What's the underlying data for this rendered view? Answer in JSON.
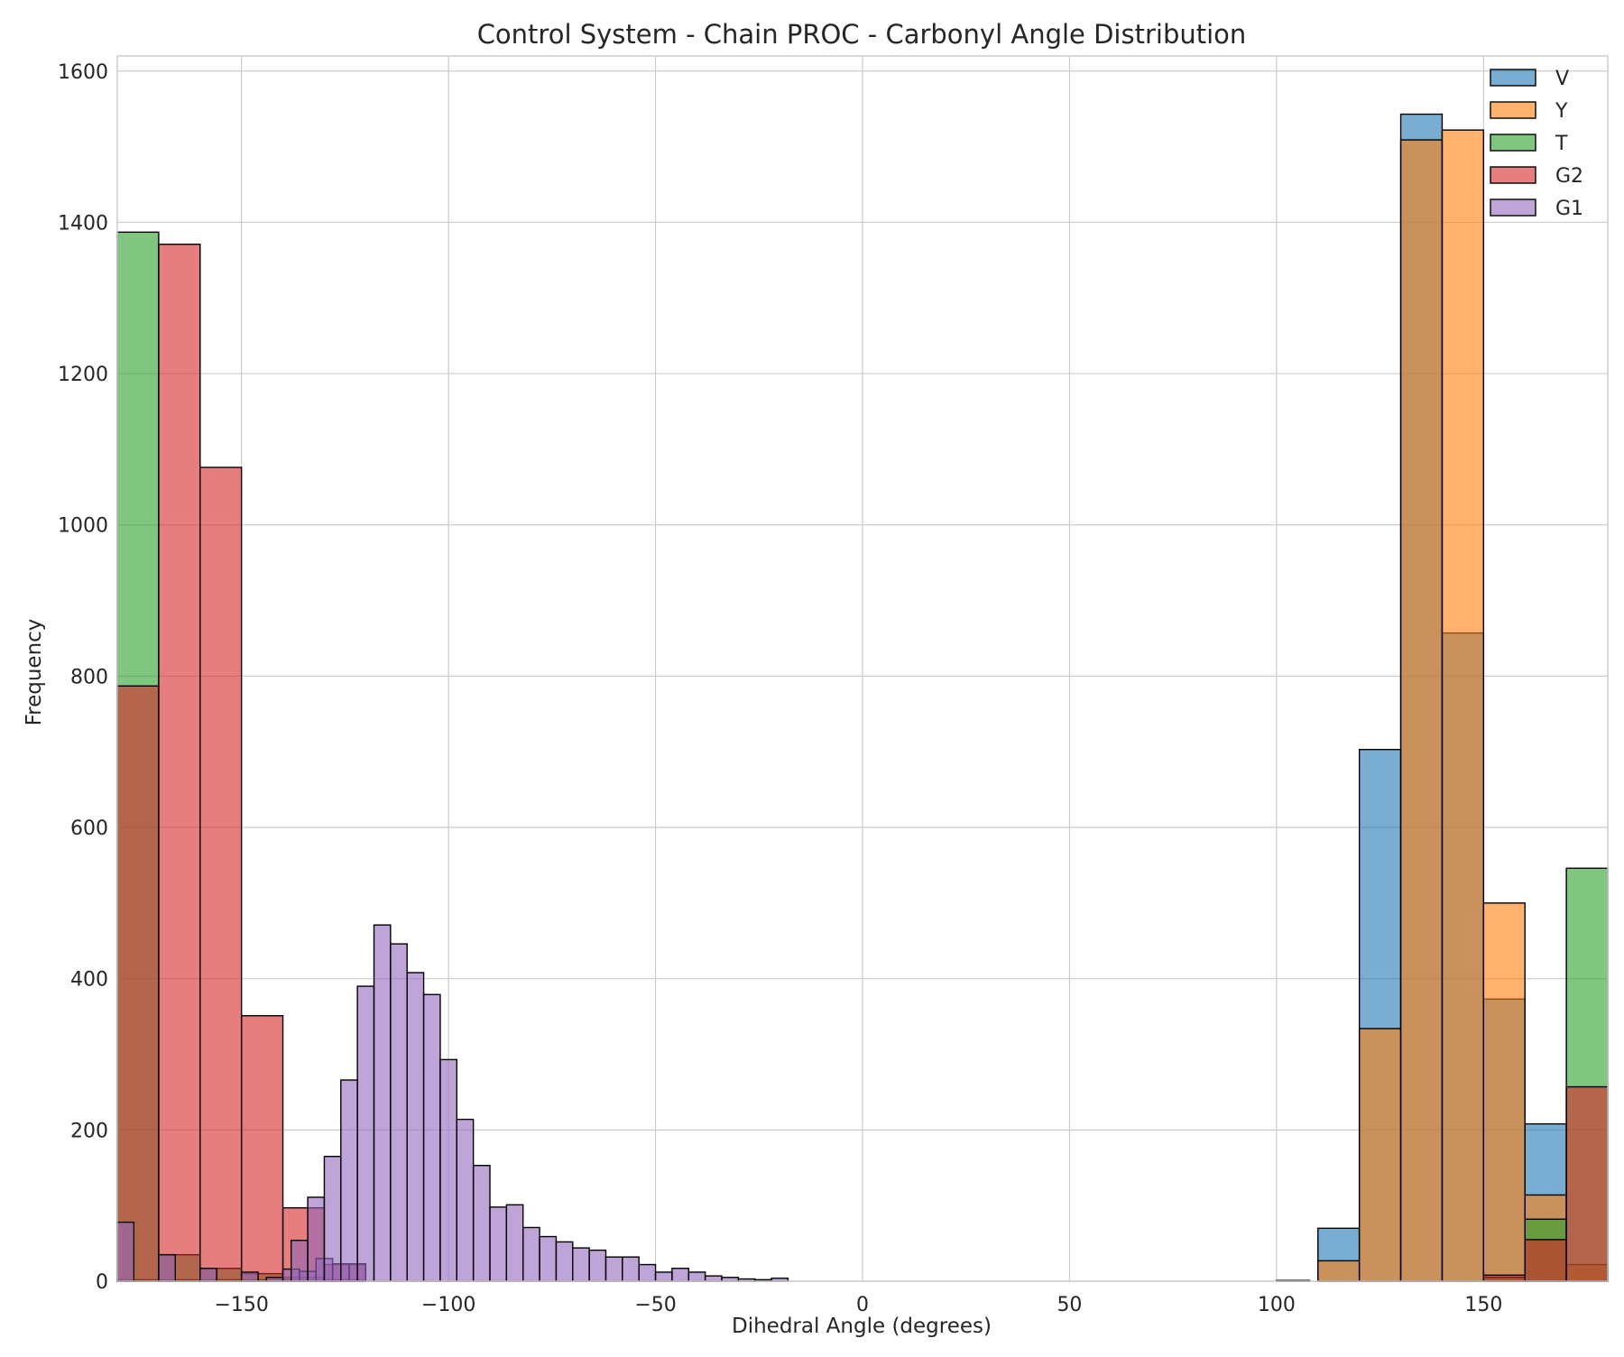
{
  "chart_data": {
    "type": "histogram",
    "title": "Control System - Chain PROC - Carbonyl Angle Distribution",
    "xlabel": "Dihedral Angle (degrees)",
    "ylabel": "Frequency",
    "xlim": [
      -180,
      180
    ],
    "ylim": [
      0,
      1620
    ],
    "xticks": [
      -150,
      -100,
      -50,
      0,
      50,
      100,
      150
    ],
    "xtick_labels": [
      "−150",
      "−100",
      "−50",
      "0",
      "50",
      "100",
      "150"
    ],
    "yticks": [
      0,
      200,
      400,
      600,
      800,
      1000,
      1200,
      1400,
      1600
    ],
    "grid": true,
    "legend_position": "top-right",
    "series": [
      {
        "name": "V",
        "color": "#1f77b4",
        "bin_width": 10,
        "bins": [
          [
            -180,
            0
          ],
          [
            -170,
            0
          ],
          [
            -160,
            0
          ],
          [
            -150,
            0
          ],
          [
            -140,
            0
          ],
          [
            -130,
            0
          ],
          [
            110,
            70
          ],
          [
            120,
            703
          ],
          [
            130,
            1543
          ],
          [
            140,
            857
          ],
          [
            150,
            373
          ],
          [
            160,
            208
          ],
          [
            170,
            0
          ]
        ]
      },
      {
        "name": "Y",
        "color": "#ff7f0e",
        "bin_width": 10,
        "bins": [
          [
            -180,
            2
          ],
          [
            -170,
            2
          ],
          [
            -160,
            2
          ],
          [
            -150,
            2
          ],
          [
            -140,
            2
          ],
          [
            -130,
            2
          ],
          [
            110,
            27
          ],
          [
            120,
            334
          ],
          [
            130,
            1509
          ],
          [
            140,
            1522
          ],
          [
            150,
            500
          ],
          [
            160,
            114
          ],
          [
            170,
            22
          ]
        ]
      },
      {
        "name": "T",
        "color": "#2ca02c",
        "bin_width": 10,
        "bins": [
          [
            -180,
            1387
          ],
          [
            -170,
            35
          ],
          [
            -160,
            17
          ],
          [
            -150,
            10
          ],
          [
            -140,
            5
          ],
          [
            -130,
            2
          ],
          [
            110,
            0
          ],
          [
            120,
            0
          ],
          [
            130,
            0
          ],
          [
            140,
            0
          ],
          [
            150,
            5
          ],
          [
            160,
            82
          ],
          [
            170,
            546
          ]
        ]
      },
      {
        "name": "G2",
        "color": "#d62728",
        "bin_width": 10,
        "bins": [
          [
            -180,
            787
          ],
          [
            -170,
            1371
          ],
          [
            -160,
            1076
          ],
          [
            -150,
            351
          ],
          [
            -140,
            97
          ],
          [
            -130,
            22
          ],
          [
            110,
            0
          ],
          [
            120,
            0
          ],
          [
            130,
            0
          ],
          [
            140,
            0
          ],
          [
            150,
            8
          ],
          [
            160,
            55
          ],
          [
            170,
            257
          ]
        ]
      },
      {
        "name": "G1",
        "color": "#9467bd",
        "bin_width": 4,
        "bins": [
          [
            -180,
            78
          ],
          [
            -170,
            35
          ],
          [
            -160,
            17
          ],
          [
            -150,
            12
          ],
          [
            -144,
            5
          ],
          [
            -140,
            16
          ],
          [
            -136,
            13
          ],
          [
            -132,
            30
          ],
          [
            -128,
            23
          ],
          [
            -124,
            23
          ],
          [
            -138,
            54
          ],
          [
            -134,
            111
          ],
          [
            -130,
            165
          ],
          [
            -126,
            266
          ],
          [
            -122,
            390
          ],
          [
            -118,
            471
          ],
          [
            -114,
            446
          ],
          [
            -110,
            408
          ],
          [
            -106,
            379
          ],
          [
            -102,
            293
          ],
          [
            -98,
            214
          ],
          [
            -94,
            153
          ],
          [
            -90,
            98
          ],
          [
            -86,
            101
          ],
          [
            -82,
            71
          ],
          [
            -78,
            59
          ],
          [
            -74,
            52
          ],
          [
            -70,
            44
          ],
          [
            -66,
            41
          ],
          [
            -62,
            32
          ],
          [
            -58,
            32
          ],
          [
            -54,
            22
          ],
          [
            -50,
            12
          ],
          [
            -46,
            17
          ],
          [
            -42,
            12
          ],
          [
            -38,
            7
          ],
          [
            -34,
            5
          ],
          [
            -30,
            3
          ],
          [
            -26,
            2
          ],
          [
            -22,
            4
          ],
          [
            -18,
            0
          ],
          [
            100,
            1
          ],
          [
            104,
            1
          ]
        ]
      }
    ]
  }
}
